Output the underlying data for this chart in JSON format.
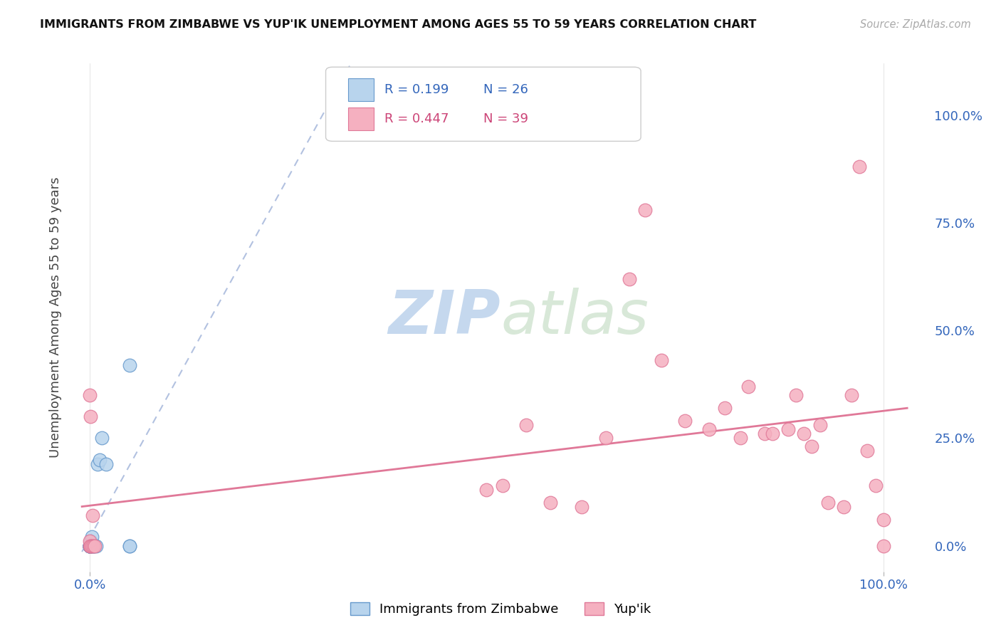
{
  "title": "IMMIGRANTS FROM ZIMBABWE VS YUP'IK UNEMPLOYMENT AMONG AGES 55 TO 59 YEARS CORRELATION CHART",
  "source": "Source: ZipAtlas.com",
  "ylabel": "Unemployment Among Ages 55 to 59 years",
  "legend_zimbabwe": "Immigrants from Zimbabwe",
  "legend_yupik": "Yup'ik",
  "R_zimbabwe": 0.199,
  "N_zimbabwe": 26,
  "R_yupik": 0.447,
  "N_yupik": 39,
  "color_zimbabwe_fill": "#b8d4ed",
  "color_zimbabwe_edge": "#6699cc",
  "color_yupik_fill": "#f5b0c0",
  "color_yupik_edge": "#e07898",
  "color_trendline_zimbabwe": "#aabbdd",
  "color_trendline_yupik": "#e07898",
  "watermark_zip": "ZIP",
  "watermark_atlas": "atlas",
  "grid_color": "#e8e8e8",
  "background_color": "#ffffff",
  "zimbabwe_x": [
    0.0,
    0.0,
    0.0,
    0.0,
    0.0,
    0.0,
    0.0,
    0.0,
    0.0,
    0.0,
    0.0,
    0.001,
    0.001,
    0.001,
    0.002,
    0.003,
    0.004,
    0.005,
    0.008,
    0.01,
    0.012,
    0.015,
    0.02,
    0.05,
    0.05,
    0.05
  ],
  "zimbabwe_y": [
    0.0,
    0.0,
    0.0,
    0.0,
    0.0,
    0.0,
    0.0,
    0.0,
    0.0,
    0.0,
    0.0,
    0.0,
    0.0,
    0.01,
    0.02,
    0.0,
    0.0,
    0.0,
    0.0,
    0.19,
    0.2,
    0.25,
    0.19,
    0.0,
    0.0,
    0.42
  ],
  "yupik_x": [
    0.0,
    0.0,
    0.0,
    0.001,
    0.001,
    0.001,
    0.002,
    0.003,
    0.004,
    0.006,
    0.5,
    0.52,
    0.55,
    0.58,
    0.62,
    0.65,
    0.68,
    0.7,
    0.72,
    0.75,
    0.78,
    0.8,
    0.82,
    0.83,
    0.85,
    0.86,
    0.88,
    0.89,
    0.9,
    0.91,
    0.92,
    0.93,
    0.95,
    0.96,
    0.97,
    0.98,
    0.99,
    1.0,
    1.0
  ],
  "yupik_y": [
    0.0,
    0.01,
    0.35,
    0.3,
    0.0,
    0.0,
    0.0,
    0.07,
    0.0,
    0.0,
    0.13,
    0.14,
    0.28,
    0.1,
    0.09,
    0.25,
    0.62,
    0.78,
    0.43,
    0.29,
    0.27,
    0.32,
    0.25,
    0.37,
    0.26,
    0.26,
    0.27,
    0.35,
    0.26,
    0.23,
    0.28,
    0.1,
    0.09,
    0.35,
    0.88,
    0.22,
    0.14,
    0.0,
    0.06
  ],
  "ytick_positions": [
    0.0,
    0.25,
    0.5,
    0.75,
    1.0
  ],
  "ytick_labels": [
    "0.0%",
    "25.0%",
    "50.0%",
    "75.0%",
    "100.0%"
  ],
  "xtick_positions": [
    0.0,
    1.0
  ],
  "xtick_labels": [
    "0.0%",
    "100.0%"
  ]
}
